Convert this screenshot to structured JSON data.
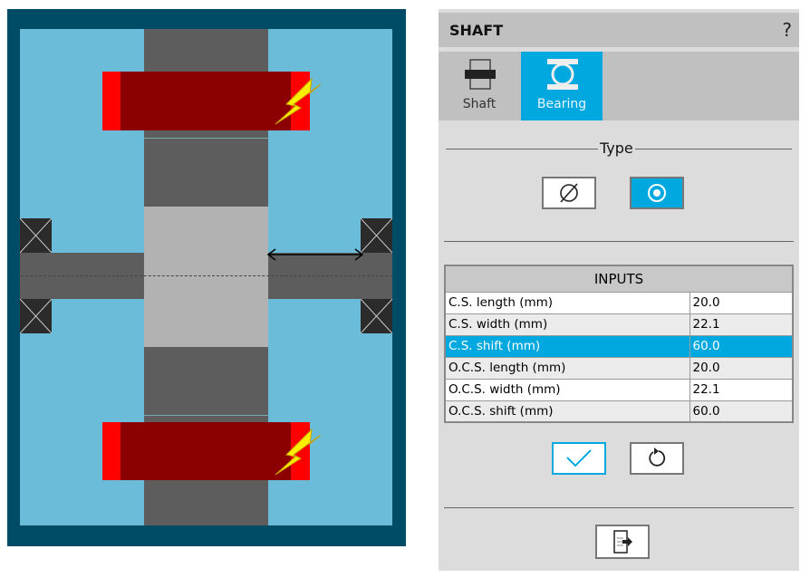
{
  "panel": {
    "title": "SHAFT",
    "help": "?",
    "tabs": [
      {
        "label": "Shaft",
        "active": false
      },
      {
        "label": "Bearing",
        "active": true
      }
    ],
    "type_label": "Type",
    "type_options": [
      {
        "icon": "diameter-icon",
        "selected": false
      },
      {
        "icon": "radio-dot-icon",
        "selected": true
      }
    ],
    "inputs": {
      "header": "INPUTS",
      "rows": [
        {
          "label": "C.S. length (mm)",
          "value": "20.0"
        },
        {
          "label": "C.S. width (mm)",
          "value": "22.1"
        },
        {
          "label": "C.S. shift (mm)",
          "value": "60.0",
          "selected": true
        },
        {
          "label": "O.C.S. length (mm)",
          "value": "20.0"
        },
        {
          "label": "O.C.S. width (mm)",
          "value": "22.1"
        },
        {
          "label": "O.C.S. shift (mm)",
          "value": "60.0"
        }
      ]
    },
    "actions": [
      {
        "icon": "check-icon"
      },
      {
        "icon": "reset-icon"
      },
      {
        "icon": "export-icon"
      }
    ]
  },
  "colors": {
    "accent": "#00a8e0",
    "frame": "#004b66",
    "background": "#6bbcd8",
    "gear": "#8b0000",
    "gear_end": "#ff0000",
    "bolt": "#ffee00"
  }
}
